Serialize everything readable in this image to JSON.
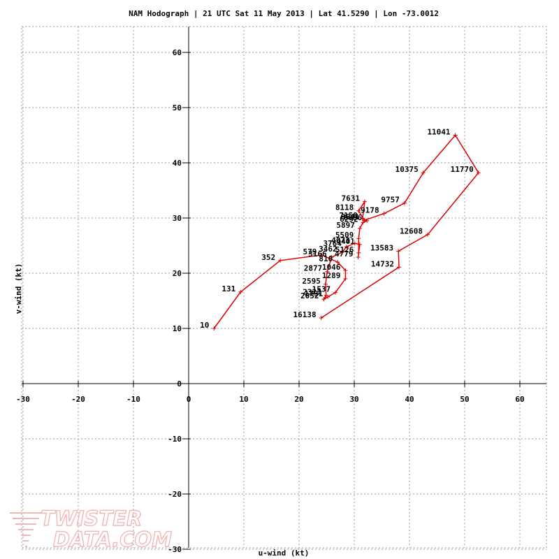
{
  "title": "NAM Hodograph | 21 UTC Sat 11 May 2013 | Lat 41.5290 | Lon -73.0012",
  "watermark": {
    "line1": "TWISTER",
    "line2": "DATA.COM"
  },
  "colors": {
    "trace": "#dd0000",
    "grid": "#999999",
    "axis": "#000000"
  },
  "chart_data": {
    "type": "line",
    "title": "NAM Hodograph | 21 UTC Sat 11 May 2013 | Lat 41.5290 | Lon -73.0012",
    "xlabel": "u-wind (kt)",
    "ylabel": "v-wind (kt)",
    "xlim": [
      -30,
      65
    ],
    "ylim": [
      -30,
      65
    ],
    "xticks": [
      -30,
      -20,
      -10,
      0,
      10,
      20,
      30,
      40,
      50,
      60
    ],
    "yticks": [
      -30,
      -20,
      -10,
      0,
      10,
      20,
      30,
      40,
      50,
      60
    ],
    "grid": true,
    "series": [
      {
        "points": [
          {
            "label": "10",
            "u": 4.6,
            "v": 10.0
          },
          {
            "label": "131",
            "u": 9.4,
            "v": 16.6
          },
          {
            "label": "352",
            "u": 16.6,
            "v": 22.3
          },
          {
            "label": "579",
            "u": 24.1,
            "v": 23.3
          },
          {
            "label": "810",
            "u": 27.0,
            "v": 22.0
          },
          {
            "label": "1046",
            "u": 28.4,
            "v": 20.5
          },
          {
            "label": "1289",
            "u": 28.4,
            "v": 19.0
          },
          {
            "label": "1537",
            "u": 26.6,
            "v": 16.5
          },
          {
            "label": "1791",
            "u": 25.2,
            "v": 15.7
          },
          {
            "label": "2052",
            "u": 24.5,
            "v": 15.3
          },
          {
            "label": "2321",
            "u": 24.9,
            "v": 16.0
          },
          {
            "label": "2595",
            "u": 24.8,
            "v": 18.0
          },
          {
            "label": "2877",
            "u": 25.1,
            "v": 20.3
          },
          {
            "label": "3166",
            "u": 25.9,
            "v": 22.9
          },
          {
            "label": "3462",
            "u": 27.8,
            "v": 23.8
          },
          {
            "label": "3764",
            "u": 28.6,
            "v": 24.8
          },
          {
            "label": "4073",
            "u": 30.1,
            "v": 25.4
          },
          {
            "label": "4401",
            "u": 31.0,
            "v": 25.2
          },
          {
            "label": "4779",
            "u": 30.7,
            "v": 22.9
          },
          {
            "label": "5126",
            "u": 30.8,
            "v": 23.7
          },
          {
            "label": "5509",
            "u": 30.8,
            "v": 26.3
          },
          {
            "label": "5897",
            "u": 31.0,
            "v": 28.1
          },
          {
            "label": "6292",
            "u": 31.6,
            "v": 29.2
          },
          {
            "label": "6696",
            "u": 32.3,
            "v": 29.5
          },
          {
            "label": "7158",
            "u": 31.5,
            "v": 29.9
          },
          {
            "label": "7631",
            "u": 31.9,
            "v": 33.0
          },
          {
            "label": "8118",
            "u": 30.8,
            "v": 31.3
          },
          {
            "label": "8641",
            "u": 31.8,
            "v": 29.6
          },
          {
            "label": "9178",
            "u": 35.4,
            "v": 30.8
          },
          {
            "label": "9757",
            "u": 39.1,
            "v": 32.7
          },
          {
            "label": "10375",
            "u": 42.5,
            "v": 38.2
          },
          {
            "label": "11041",
            "u": 48.3,
            "v": 45.0
          },
          {
            "label": "11770",
            "u": 52.5,
            "v": 38.2
          },
          {
            "label": "12608",
            "u": 43.3,
            "v": 27.0
          },
          {
            "label": "13583",
            "u": 38.0,
            "v": 24.0
          },
          {
            "label": "14732",
            "u": 38.1,
            "v": 21.1
          },
          {
            "label": "16138",
            "u": 24.0,
            "v": 11.9
          }
        ]
      }
    ]
  }
}
